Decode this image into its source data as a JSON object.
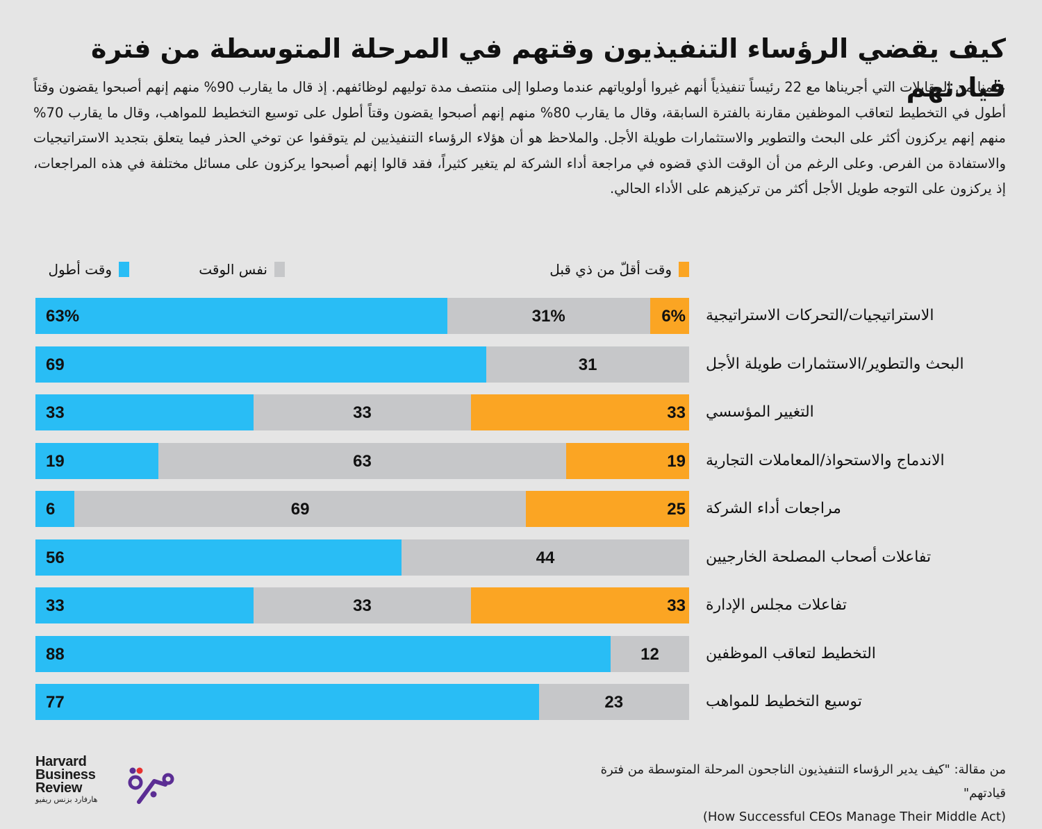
{
  "title": "كيف يقضي الرؤساء التنفيذيون وقتهم في المرحلة المتوسطة من فترة قيادتهم",
  "intro": "علمنا من المقابلات التي أجريناها مع 22 رئيساً تنفيذياً أنهم غيروا أولوياتهم عندما وصلوا إلى منتصف مدة توليهم لوظائفهم. إذ قال ما يقارب 90% منهم إنهم أصبحوا يقضون وقتاً أطول في التخطيط لتعاقب الموظفين مقارنة بالفترة السابقة، وقال ما يقارب 80% منهم إنهم أصبحوا يقضون وقتاً أطول على توسيع التخطيط للمواهب، وقال ما يقارب 70% منهم إنهم يركزون أكثر على البحث والتطوير والاستثمارات طويلة الأجل. والملاحظ هو أن هؤلاء الرؤساء التنفيذيين لم يتوقفوا عن توخي الحذر فيما يتعلق بتجديد الاستراتيجيات والاستفادة من الفرص. وعلى الرغم من أن الوقت الذي قضوه في مراجعة أداء الشركة لم يتغير كثيراً، فقد قالوا إنهم أصبحوا يركزون على مسائل مختلفة في هذه المراجعات، إذ يركزون على التوجه طويل الأجل أكثر من تركيزهم على الأداء الحالي.",
  "colors": {
    "background": "#e5e5e5",
    "more": "#29bdf5",
    "same": "#c6c7c9",
    "less": "#fba523"
  },
  "chart_data": {
    "type": "bar",
    "orientation": "horizontal-stacked-100",
    "title": "كيف يقضي الرؤساء التنفيذيون وقتهم في المرحلة المتوسطة من فترة قيادتهم",
    "xlabel": "",
    "ylabel": "",
    "xlim": [
      0,
      100
    ],
    "unit": "%",
    "legend_position": "top",
    "grid": false,
    "legend": [
      {
        "key": "less",
        "label": "وقت أقلّ من ذي قبل"
      },
      {
        "key": "same",
        "label": "نفس الوقت"
      },
      {
        "key": "more",
        "label": "وقت أطول"
      }
    ],
    "categories": [
      "الاستراتيجيات/التحركات الاستراتيجية",
      "البحث والتطوير/الاستثمارات طويلة الأجل",
      "التغيير المؤسسي",
      "الاندماج والاستحواذ/المعاملات التجارية",
      "مراجعات أداء الشركة",
      "تفاعلات أصحاب المصلحة الخارجيين",
      "تفاعلات مجلس الإدارة",
      "التخطيط لتعاقب الموظفين",
      "توسيع التخطيط للمواهب"
    ],
    "series": [
      {
        "name": "وقت أطول",
        "key": "more",
        "values": [
          63,
          69,
          33,
          19,
          6,
          56,
          33,
          88,
          77
        ]
      },
      {
        "name": "نفس الوقت",
        "key": "same",
        "values": [
          31,
          31,
          33,
          63,
          69,
          44,
          33,
          12,
          23
        ]
      },
      {
        "name": "وقت أقلّ من ذي قبل",
        "key": "less",
        "values": [
          6,
          0,
          33,
          19,
          25,
          0,
          33,
          0,
          0
        ]
      }
    ],
    "value_labels": [
      {
        "more": "63%",
        "same": "31%",
        "less": "6%"
      },
      {
        "more": "69",
        "same": "31",
        "less": ""
      },
      {
        "more": "33",
        "same": "33",
        "less": "33"
      },
      {
        "more": "19",
        "same": "63",
        "less": "19"
      },
      {
        "more": "6",
        "same": "69",
        "less": "25"
      },
      {
        "more": "56",
        "same": "44",
        "less": ""
      },
      {
        "more": "33",
        "same": "33",
        "less": "33"
      },
      {
        "more": "88",
        "same": "12",
        "less": ""
      },
      {
        "more": "77",
        "same": "23",
        "less": ""
      }
    ]
  },
  "source": {
    "arabic": "من مقالة: \"كيف يدير الرؤساء التنفيذيون الناجحون المرحلة المتوسطة من فترة قيادتهم\"",
    "english": "(How Successful CEOs Manage Their Middle Act)"
  },
  "logos": {
    "hbr_line1": "Harvard",
    "hbr_line2": "Business",
    "hbr_line3": "Review",
    "hbr_arabic": "هارفارد بزنس ريفيو",
    "majarra": "majarra-logo"
  }
}
